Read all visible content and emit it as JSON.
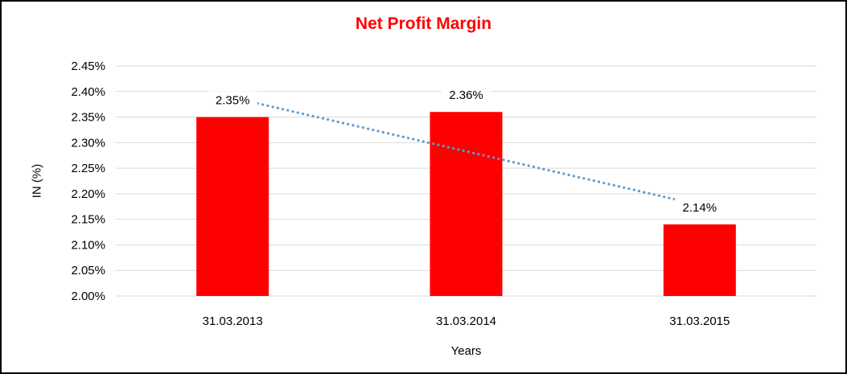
{
  "window": {
    "background": "#FFFFFF",
    "border_color": "#000000"
  },
  "chart_data": {
    "type": "bar",
    "title": "Net Profit Margin",
    "title_color": "#FF0000",
    "categories": [
      "31.03.2013",
      "31.03.2014",
      "31.03.2015"
    ],
    "values": [
      2.35,
      2.36,
      2.14
    ],
    "value_labels": [
      "2.35%",
      "2.36%",
      "2.14%"
    ],
    "bar_color": "#FF0000",
    "xlabel": "Years",
    "ylabel": "IN (%)",
    "ylim": [
      2.0,
      2.45
    ],
    "ytick_step": 0.05,
    "ytick_labels": [
      "2.45%",
      "2.40%",
      "2.35%",
      "2.30%",
      "2.25%",
      "2.20%",
      "2.15%",
      "2.10%",
      "2.05%",
      "2.00%"
    ],
    "grid": true,
    "gridline_color": "#D9D9D9",
    "legend_position": "none",
    "text_color": "#000000",
    "trendline": {
      "type": "linear",
      "style": "dotted",
      "color": "#5B9BD5",
      "endpoint_values": [
        2.388,
        2.178
      ]
    }
  }
}
